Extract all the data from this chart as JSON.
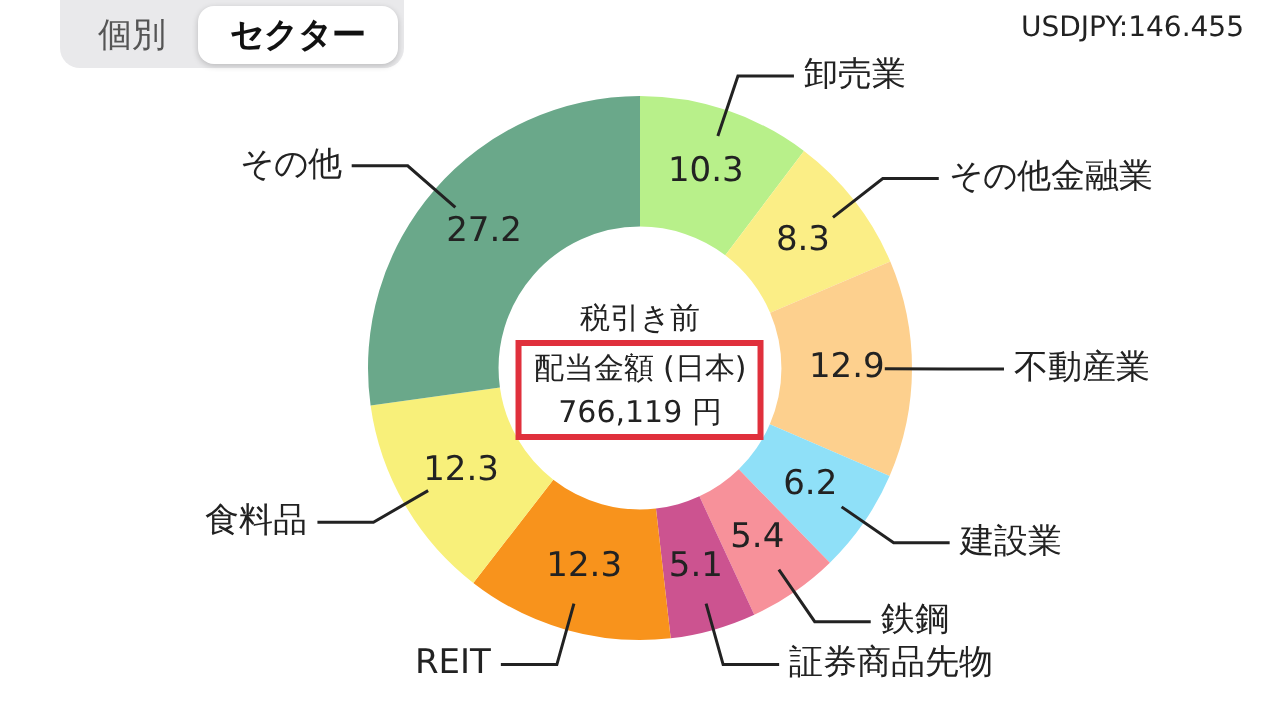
{
  "chart_data": {
    "type": "donut",
    "categories": [
      "卸売業",
      "その他金融業",
      "不動産業",
      "建設業",
      "鉄鋼",
      "証券商品先物",
      "REIT",
      "食料品",
      "その他"
    ],
    "values": [
      10.3,
      8.3,
      12.9,
      6.2,
      5.4,
      5.1,
      12.3,
      12.3,
      27.2
    ],
    "colors": [
      "#b8f08a",
      "#fbee86",
      "#fdd08e",
      "#8fe0f8",
      "#f7919a",
      "#cc5390",
      "#f8931c",
      "#f8f07a",
      "#6aa88a"
    ],
    "data_labels": true,
    "legend": false,
    "annotations": [
      "個別",
      "セクター",
      "USDJPY:146.455",
      "税引き前",
      "配当金額 (日本)",
      "766,119 円"
    ]
  }
}
